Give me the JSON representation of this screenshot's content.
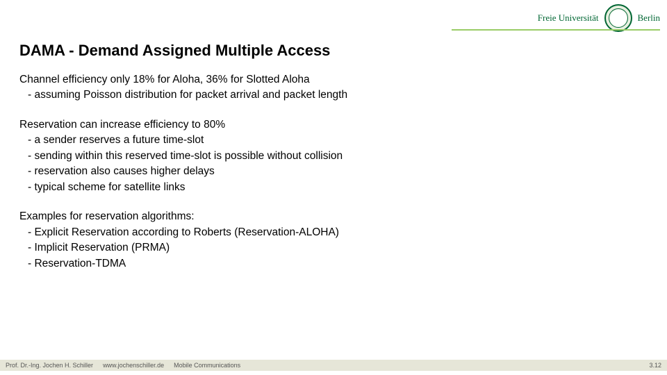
{
  "header": {
    "uni_name": "Freie Universität",
    "city": "Berlin",
    "underline_color": "#99cc66",
    "seal_border": "#006633"
  },
  "title": "DAMA - Demand Assigned Multiple Access",
  "block1": {
    "line1": "Channel efficiency only 18% for Aloha, 36% for Slotted Aloha",
    "bullets": [
      "assuming Poisson distribution for packet arrival and packet length"
    ]
  },
  "block2": {
    "line1": "Reservation can increase efficiency to 80%",
    "bullets": [
      "a sender reserves a future time-slot",
      "sending within this reserved time-slot is possible without collision",
      "reservation also causes higher delays",
      "typical scheme for satellite links"
    ]
  },
  "block3": {
    "line1": "Examples for reservation algorithms:",
    "bullets": [
      "Explicit Reservation according to Roberts (Reservation-ALOHA)",
      "Implicit Reservation (PRMA)",
      "Reservation-TDMA"
    ]
  },
  "footer": {
    "author": "Prof. Dr.-Ing. Jochen H. Schiller",
    "url": "www.jochenschiller.de",
    "course": "Mobile Communications",
    "page": "3.12",
    "bg": "#e6e6d8"
  }
}
